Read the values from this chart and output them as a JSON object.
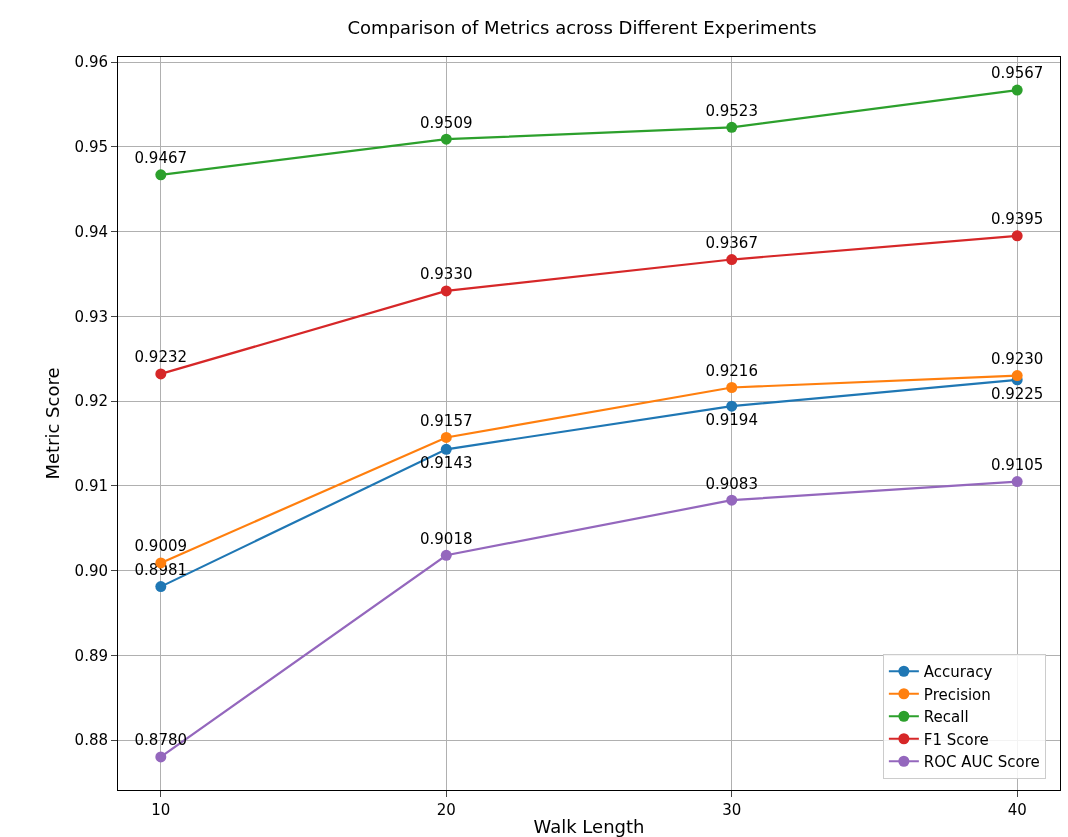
{
  "chart_data": {
    "type": "line",
    "title": "Comparison of Metrics across Different Experiments",
    "xlabel": "Walk Length",
    "ylabel": "Metric Score",
    "x": [
      10,
      20,
      30,
      40
    ],
    "series": [
      {
        "name": "Accuracy",
        "color": "#1f77b4",
        "values": [
          0.8981,
          0.9143,
          0.9194,
          0.9225
        ],
        "value_labels": [
          "0.8981",
          "0.9143",
          "0.9194",
          "0.9225"
        ]
      },
      {
        "name": "Precision",
        "color": "#ff7f0e",
        "values": [
          0.9009,
          0.9157,
          0.9216,
          0.923
        ],
        "value_labels": [
          "0.9009",
          "0.9157",
          "0.9216",
          "0.9230"
        ]
      },
      {
        "name": "Recall",
        "color": "#2ca02c",
        "values": [
          0.9467,
          0.9509,
          0.9523,
          0.9567
        ],
        "value_labels": [
          "0.9467",
          "0.9509",
          "0.9523",
          "0.9567"
        ]
      },
      {
        "name": "F1 Score",
        "color": "#d62728",
        "values": [
          0.9232,
          0.933,
          0.9367,
          0.9395
        ],
        "value_labels": [
          "0.9232",
          "0.9330",
          "0.9367",
          "0.9395"
        ]
      },
      {
        "name": "ROC AUC Score",
        "color": "#9467bd",
        "values": [
          0.878,
          0.9018,
          0.9083,
          0.9105
        ],
        "value_labels": [
          "0.8780",
          "0.9018",
          "0.9083",
          "0.9105"
        ]
      }
    ],
    "xlim": [
      8.5,
      41.5
    ],
    "xticks": [
      10,
      20,
      30,
      40
    ],
    "ylim": [
      0.8741,
      0.9606
    ],
    "yticks": [
      {
        "value": 0.88,
        "label": "0.88"
      },
      {
        "value": 0.89,
        "label": "0.89"
      },
      {
        "value": 0.9,
        "label": "0.90"
      },
      {
        "value": 0.91,
        "label": "0.91"
      },
      {
        "value": 0.92,
        "label": "0.92"
      },
      {
        "value": 0.93,
        "label": "0.93"
      },
      {
        "value": 0.94,
        "label": "0.94"
      },
      {
        "value": 0.95,
        "label": "0.95"
      },
      {
        "value": 0.96,
        "label": "0.96"
      }
    ],
    "grid": true,
    "legend": "bottom right",
    "marker": "circle",
    "line_style": "solid"
  }
}
